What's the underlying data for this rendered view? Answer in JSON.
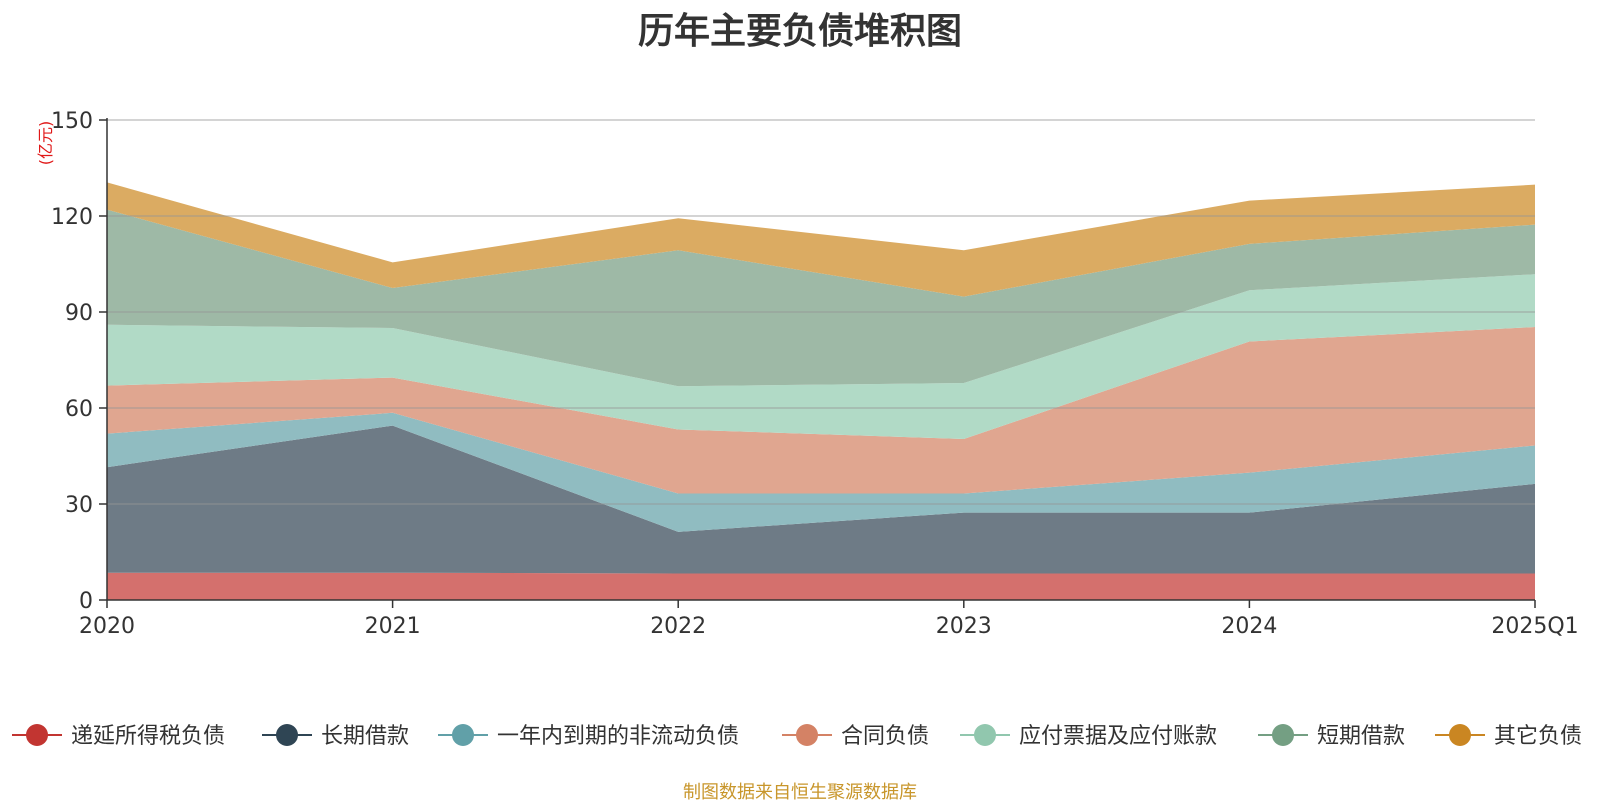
{
  "title": "历年主要负债堆积图",
  "source_note": "制图数据来自恒生聚源数据库",
  "chart_data": {
    "type": "area",
    "stacked": true,
    "title": "历年主要负债堆积图",
    "unit_label": "(亿元)",
    "x": [
      "2020",
      "2021",
      "2022",
      "2023",
      "2024",
      "2025Q1"
    ],
    "ylim": [
      0,
      150
    ],
    "yticks": [
      0,
      30,
      60,
      90,
      120,
      150
    ],
    "grid": true,
    "legend_position": "bottom",
    "series": [
      {
        "name": "递延所得税负债",
        "values": [
          8.5,
          8.5,
          8.3,
          8.3,
          8.3,
          8.3
        ],
        "color": "#c23531",
        "area_color": "#d4706d"
      },
      {
        "name": "长期借款",
        "values": [
          33.0,
          46.0,
          13.0,
          19.0,
          19.0,
          28.0
        ],
        "color": "#2f4554",
        "area_color": "#6e7b86"
      },
      {
        "name": "一年内到期的非流动负债",
        "values": [
          10.5,
          4.0,
          12.0,
          6.0,
          12.5,
          12.0
        ],
        "color": "#61a0a8",
        "area_color": "#90bcc1"
      },
      {
        "name": "合同负债",
        "values": [
          15.0,
          11.0,
          20.0,
          17.0,
          41.0,
          37.0
        ],
        "color": "#d48265",
        "area_color": "#e0a690"
      },
      {
        "name": "应付票据及应付账款",
        "values": [
          19.0,
          15.5,
          13.5,
          17.5,
          16.0,
          16.5
        ],
        "color": "#91c7ae",
        "area_color": "#b1dac6"
      },
      {
        "name": "短期借款",
        "values": [
          36.0,
          12.5,
          42.5,
          27.0,
          14.5,
          15.5
        ],
        "color": "#749f83",
        "area_color": "#9eb9a6"
      },
      {
        "name": "其它负债",
        "values": [
          8.5,
          8.0,
          10.0,
          14.5,
          13.5,
          12.5
        ],
        "color": "#ca8622",
        "area_color": "#dbab62"
      }
    ]
  }
}
